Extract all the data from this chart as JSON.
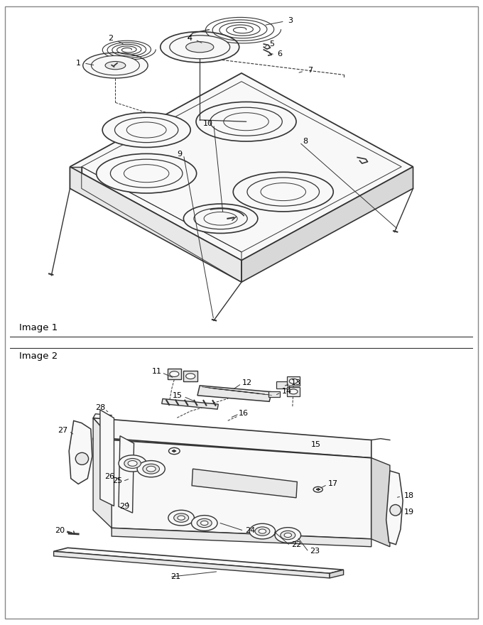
{
  "bg_color": "#ffffff",
  "lc": "#333333",
  "image1_label": "Image 1",
  "image2_label": "Image 2",
  "fig_width": 6.8,
  "fig_height": 8.8,
  "dpi": 100
}
